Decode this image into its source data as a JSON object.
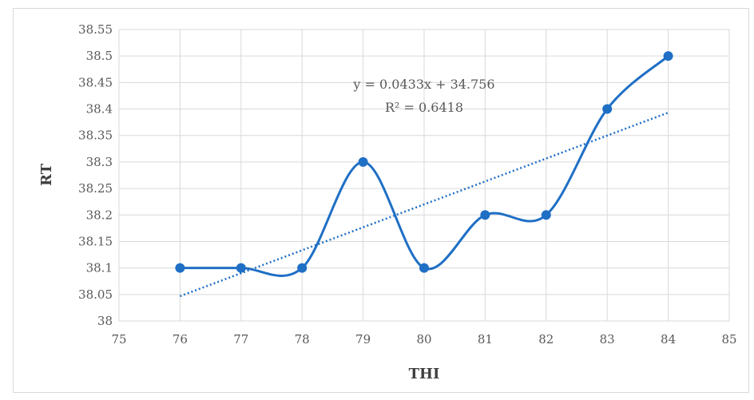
{
  "chart_data": {
    "type": "scatter",
    "title": "",
    "xlabel": "THI",
    "ylabel": "RT",
    "xlim": [
      75,
      85
    ],
    "ylim": [
      38,
      38.55
    ],
    "xticks": [
      "75",
      "76",
      "77",
      "78",
      "79",
      "80",
      "81",
      "82",
      "83",
      "84",
      "85"
    ],
    "yticks": [
      "38",
      "38.05",
      "38.1",
      "38.15",
      "38.2",
      "38.25",
      "38.3",
      "38.35",
      "38.4",
      "38.45",
      "38.5",
      "38.55"
    ],
    "grid": true,
    "legend": "none",
    "series": [
      {
        "x": [
          76,
          77,
          78,
          79,
          80,
          81,
          82,
          83,
          84
        ],
        "y": [
          38.1,
          38.1,
          38.1,
          38.3,
          38.1,
          38.2,
          38.2,
          38.4,
          38.5
        ],
        "style": "smooth line with markers",
        "color": "#1f6fc5"
      }
    ],
    "trendline": {
      "type": "linear",
      "slope": 0.0433,
      "intercept": 34.756,
      "x_range": [
        76,
        84
      ],
      "style": "dotted",
      "color": "#1f6fc5",
      "equation": "y = 0.0433x + 34.756",
      "r_squared": "R² = 0.6418"
    }
  }
}
